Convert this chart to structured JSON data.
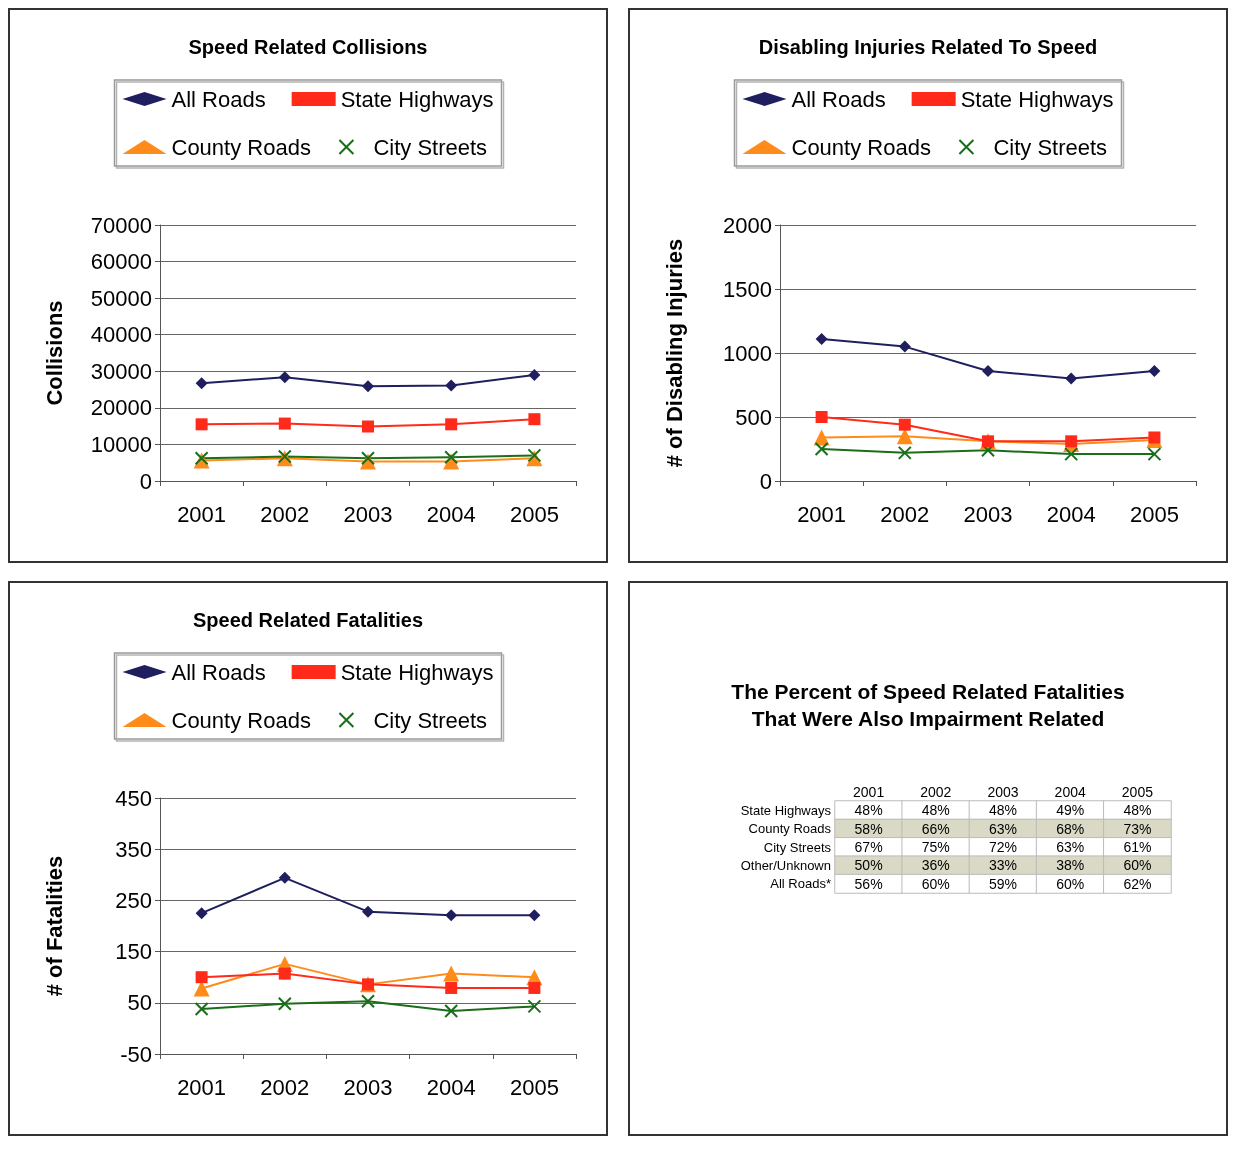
{
  "chart_data": [
    {
      "type": "line",
      "title": "Speed Related Collisions",
      "ylabel": "Collisions",
      "categories": [
        "2001",
        "2002",
        "2003",
        "2004",
        "2005"
      ],
      "ylim": [
        0,
        70000
      ],
      "yticks": [
        0,
        10000,
        20000,
        30000,
        40000,
        50000,
        60000,
        70000
      ],
      "grid": "y",
      "legend": "top",
      "series": [
        {
          "name": "All Roads",
          "color": "#1f1f5f",
          "marker": "diamond",
          "values": [
            26700,
            28400,
            25900,
            26100,
            29000
          ]
        },
        {
          "name": "State Highways",
          "color": "#ff2a1a",
          "marker": "square",
          "values": [
            15500,
            15700,
            14900,
            15500,
            16900
          ]
        },
        {
          "name": "County Roads",
          "color": "#ff8c1a",
          "marker": "triangle",
          "values": [
            5600,
            6200,
            5300,
            5300,
            6200
          ]
        },
        {
          "name": "City Streets",
          "color": "#1a6e1a",
          "marker": "cross",
          "values": [
            6200,
            6700,
            6200,
            6500,
            7000
          ]
        }
      ]
    },
    {
      "type": "line",
      "title": "Disabling Injuries Related To Speed",
      "ylabel": "# of Disabling Injuries",
      "categories": [
        "2001",
        "2002",
        "2003",
        "2004",
        "2005"
      ],
      "ylim": [
        0,
        2000
      ],
      "yticks": [
        0,
        500,
        1000,
        1500,
        2000
      ],
      "grid": "y",
      "legend": "top",
      "series": [
        {
          "name": "All Roads",
          "color": "#1f1f5f",
          "marker": "diamond",
          "values": [
            1110,
            1050,
            860,
            800,
            860
          ]
        },
        {
          "name": "State Highways",
          "color": "#ff2a1a",
          "marker": "square",
          "values": [
            500,
            440,
            310,
            310,
            340
          ]
        },
        {
          "name": "County Roads",
          "color": "#ff8c1a",
          "marker": "triangle",
          "values": [
            340,
            350,
            310,
            290,
            320
          ]
        },
        {
          "name": "City Streets",
          "color": "#1a6e1a",
          "marker": "cross",
          "values": [
            250,
            220,
            240,
            210,
            210
          ]
        }
      ]
    },
    {
      "type": "line",
      "title": "Speed Related Fatalities",
      "ylabel": "# of Fatalities",
      "categories": [
        "2001",
        "2002",
        "2003",
        "2004",
        "2005"
      ],
      "ylim": [
        -50,
        450
      ],
      "yticks": [
        -50,
        50,
        150,
        250,
        350,
        450
      ],
      "grid": "y",
      "legend": "top",
      "series": [
        {
          "name": "All Roads",
          "color": "#1f1f5f",
          "marker": "diamond",
          "values": [
            225,
            294,
            228,
            221,
            221
          ]
        },
        {
          "name": "State Highways",
          "color": "#ff2a1a",
          "marker": "square",
          "values": [
            100,
            107,
            86,
            79,
            79
          ]
        },
        {
          "name": "County Roads",
          "color": "#ff8c1a",
          "marker": "triangle",
          "values": [
            78,
            126,
            86,
            107,
            100
          ]
        },
        {
          "name": "City Streets",
          "color": "#1a6e1a",
          "marker": "cross",
          "values": [
            38,
            48,
            53,
            34,
            43
          ]
        }
      ]
    },
    {
      "type": "heatmap",
      "title": "The Percent of Speed Related Fatalities\nThat Were Also Impairment Related",
      "categories": [
        "2001",
        "2002",
        "2003",
        "2004",
        "2005"
      ],
      "y_categories": [
        "State Highways",
        "County Roads",
        "City Streets",
        "Other/Unknown",
        "All Roads*"
      ],
      "colors": [
        "#ffffff",
        "#d9d9c6",
        "#ffffff",
        "#d9d9c6",
        "#ffffff"
      ],
      "data_labels": true,
      "cells": [
        [
          48,
          48,
          48,
          49,
          48
        ],
        [
          58,
          66,
          63,
          68,
          73
        ],
        [
          67,
          75,
          72,
          63,
          61
        ],
        [
          50,
          36,
          33,
          38,
          60
        ],
        [
          56,
          60,
          59,
          60,
          62
        ]
      ],
      "cell_labels": [
        [
          "48%",
          "48%",
          "48%",
          "49%",
          "48%"
        ],
        [
          "58%",
          "66%",
          "63%",
          "68%",
          "73%"
        ],
        [
          "67%",
          "75%",
          "72%",
          "63%",
          "61%"
        ],
        [
          "50%",
          "36%",
          "33%",
          "38%",
          "60%"
        ],
        [
          "56%",
          "60%",
          "59%",
          "60%",
          "62%"
        ]
      ]
    }
  ]
}
